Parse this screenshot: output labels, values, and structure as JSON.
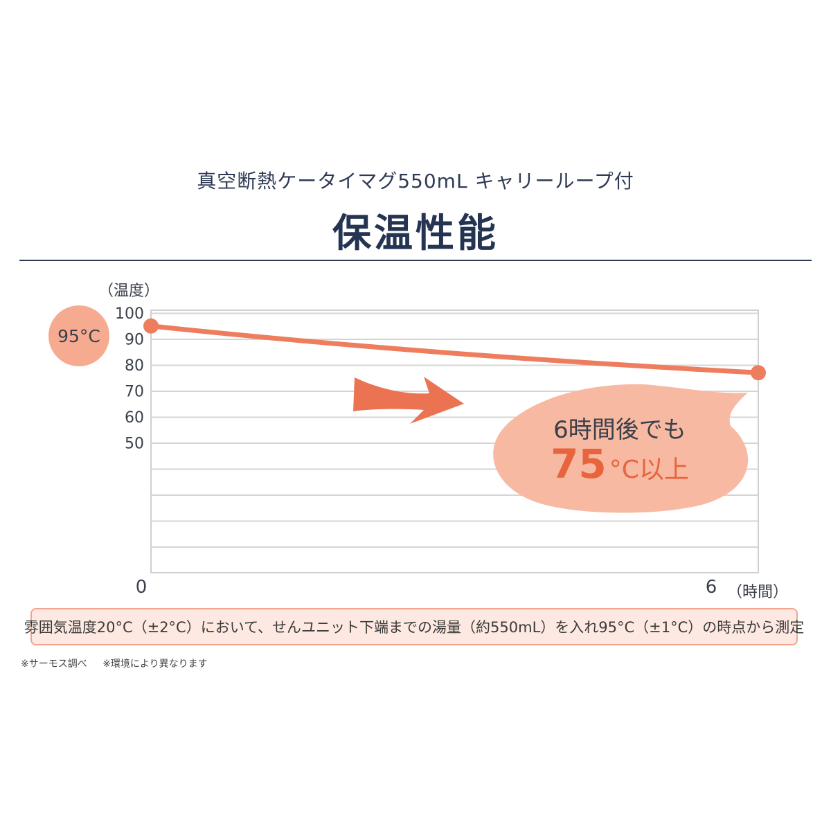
{
  "header": {
    "subtitle": "真空断熱ケータイマグ550mL キャリーループ付",
    "title": "保温性能"
  },
  "chart_data": {
    "type": "line",
    "ylabel": "（温度）",
    "xlabel": "（時間）",
    "y_ticks": [
      "100",
      "90",
      "80",
      "70",
      "60",
      "50"
    ],
    "x_ticks": [
      "0",
      "6"
    ],
    "ylim": [
      0,
      100
    ],
    "xlim": [
      0,
      6
    ],
    "grid": true,
    "series": [
      {
        "x": [
          0,
          6
        ],
        "y": [
          95,
          77
        ]
      }
    ],
    "start_badge": "95°C",
    "callout": {
      "line1": "6時間後でも",
      "big": "75",
      "rest": "°C以上"
    }
  },
  "note": "雰囲気温度20°C（±2°C）において、せんユニット下端までの湯量（約550mL）を入れ95°C（±1°C）の時点から測定",
  "footnotes": [
    "※サーモス調べ",
    "※環境により異なります"
  ],
  "colors": {
    "line": "#ee7d5e",
    "callout_fill": "#f7b9a2",
    "badge_fill": "#f6ab91",
    "arrow": "#ec7352",
    "accent_text": "#e8643f"
  }
}
